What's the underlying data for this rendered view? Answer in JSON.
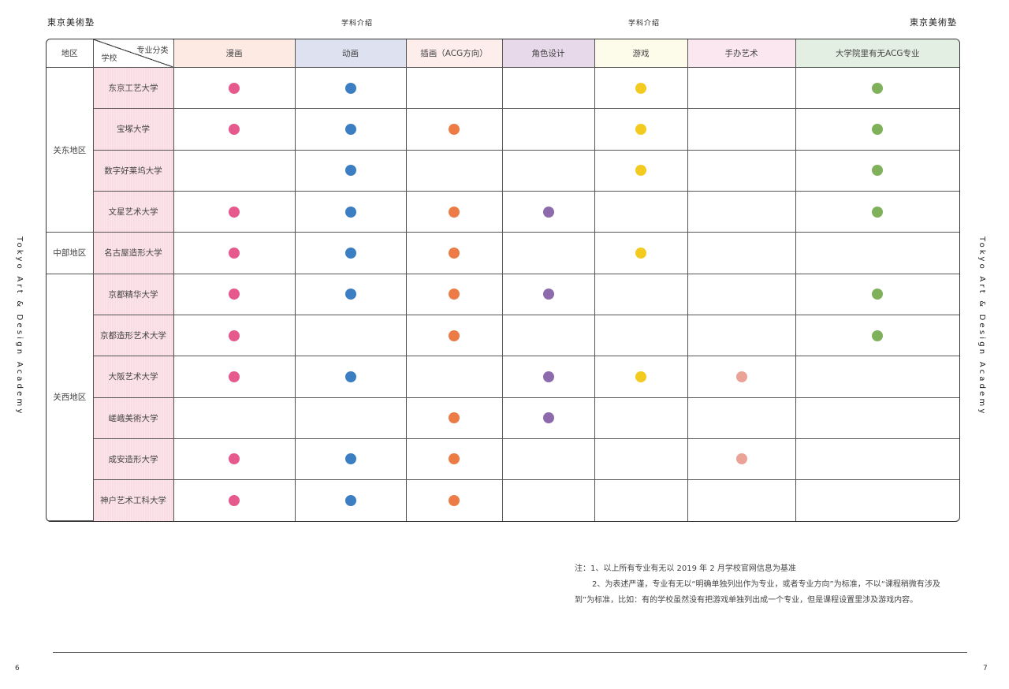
{
  "header": {
    "left_brand": "東京美術塾",
    "left_section": "学科介绍",
    "right_section": "学科介绍",
    "right_brand": "東京美術塾"
  },
  "side_label": "Tokyo Art & Design Academy",
  "page_numbers": {
    "left": "6",
    "right": "7"
  },
  "colors": {
    "manga": "#e5598c",
    "anime": "#3c7ec2",
    "illustration": "#ec7b45",
    "character": "#8d6aac",
    "game": "#f3cb20",
    "figure": "#eba397",
    "acg_grad": "#7fb15b"
  },
  "table": {
    "region_header": "地区",
    "diag_top": "专业分类",
    "diag_bottom": "学校",
    "columns": [
      {
        "key": "manga",
        "label": "漫画",
        "bg": "#fdebe3"
      },
      {
        "key": "anime",
        "label": "动画",
        "bg": "#dde1f0"
      },
      {
        "key": "illustration",
        "label": "插画（ACG方向）",
        "bg": "#fdeeec"
      },
      {
        "key": "character",
        "label": "角色设计",
        "bg": "#e7d9ea"
      },
      {
        "key": "game",
        "label": "游戏",
        "bg": "#fdfbea"
      },
      {
        "key": "figure",
        "label": "手办艺术",
        "bg": "#fbe7ef"
      },
      {
        "key": "acg_grad",
        "label": "大学院里有无ACG专业",
        "bg": "#e3efe3"
      }
    ],
    "regions": [
      {
        "name": "关东地区",
        "schools": [
          {
            "name": "东京工艺大学",
            "has": [
              "manga",
              "anime",
              "game",
              "acg_grad"
            ]
          },
          {
            "name": "宝塚大学",
            "has": [
              "manga",
              "anime",
              "illustration",
              "game",
              "acg_grad"
            ]
          },
          {
            "name": "数字好莱坞大学",
            "has": [
              "anime",
              "game",
              "acg_grad"
            ]
          },
          {
            "name": "文星艺术大学",
            "has": [
              "manga",
              "anime",
              "illustration",
              "character",
              "acg_grad"
            ]
          }
        ]
      },
      {
        "name": "中部地区",
        "schools": [
          {
            "name": "名古屋造形大学",
            "has": [
              "manga",
              "anime",
              "illustration",
              "game"
            ]
          }
        ]
      },
      {
        "name": "关西地区",
        "schools": [
          {
            "name": "京都精华大学",
            "has": [
              "manga",
              "anime",
              "illustration",
              "character",
              "acg_grad"
            ]
          },
          {
            "name": "京都造形艺术大学",
            "has": [
              "manga",
              "illustration",
              "acg_grad"
            ]
          },
          {
            "name": "大阪艺术大学",
            "has": [
              "manga",
              "anime",
              "character",
              "game",
              "figure"
            ]
          },
          {
            "name": "嵯峨美術大学",
            "has": [
              "illustration",
              "character"
            ]
          },
          {
            "name": "成安造形大学",
            "has": [
              "manga",
              "anime",
              "illustration",
              "figure"
            ]
          },
          {
            "name": "神户艺术工科大学",
            "has": [
              "manga",
              "anime",
              "illustration"
            ]
          }
        ]
      }
    ]
  },
  "notes": {
    "line1": "注：1、以上所有专业有无以 2019 年 2 月学校官网信息为基准",
    "line2": "2、为表述严谨，专业有无以“明确单独列出作为专业，或者专业方向”为标准，不以“课程稍微有涉及",
    "line3": "到”为标准，比如：有的学校虽然没有把游戏单独列出成一个专业，但是课程设置里涉及游戏内容。"
  }
}
